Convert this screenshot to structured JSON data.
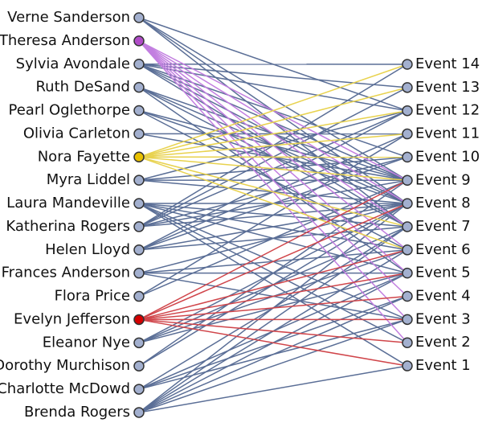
{
  "node_color": "#a3b0cf",
  "edge_color": "#5a6e96",
  "events": [
    "Event 14",
    "Event 13",
    "Event 12",
    "Event 11",
    "Event 10",
    "Event 9",
    "Event 8",
    "Event 7",
    "Event 6",
    "Event 5",
    "Event 4",
    "Event 3",
    "Event 2",
    "Event 1"
  ],
  "women": [
    {
      "name": "Verne Sanderson",
      "events": [
        "Event 7",
        "Event 8",
        "Event 9",
        "Event 12"
      ]
    },
    {
      "name": "Theresa Anderson",
      "color": "#b04cc8",
      "edge_color": "#c27ee0",
      "events": [
        "Event 2",
        "Event 3",
        "Event 4",
        "Event 5",
        "Event 6",
        "Event 7",
        "Event 8",
        "Event 9"
      ]
    },
    {
      "name": "Sylvia Avondale",
      "events": [
        "Event 7",
        "Event 8",
        "Event 9",
        "Event 10",
        "Event 12",
        "Event 13",
        "Event 14"
      ]
    },
    {
      "name": "Ruth DeSand",
      "events": [
        "Event 5",
        "Event 7",
        "Event 8",
        "Event 9"
      ]
    },
    {
      "name": "Pearl Oglethorpe",
      "events": [
        "Event 6",
        "Event 8",
        "Event 9"
      ]
    },
    {
      "name": "Olivia Carleton",
      "events": [
        "Event 9",
        "Event 11"
      ]
    },
    {
      "name": "Nora Fayette",
      "color": "#e8c000",
      "edge_color": "#e8d24e",
      "events": [
        "Event 6",
        "Event 7",
        "Event 9",
        "Event 10",
        "Event 11",
        "Event 12",
        "Event 13",
        "Event 14"
      ]
    },
    {
      "name": "Myra Liddel",
      "events": [
        "Event 8",
        "Event 9",
        "Event 10",
        "Event 12"
      ]
    },
    {
      "name": "Laura Mandeville",
      "events": [
        "Event 1",
        "Event 2",
        "Event 3",
        "Event 5",
        "Event 6",
        "Event 7",
        "Event 8"
      ]
    },
    {
      "name": "Katherina Rogers",
      "events": [
        "Event 8",
        "Event 9",
        "Event 10",
        "Event 12",
        "Event 13",
        "Event 14"
      ]
    },
    {
      "name": "Helen Lloyd",
      "events": [
        "Event 7",
        "Event 8",
        "Event 10",
        "Event 11",
        "Event 12"
      ]
    },
    {
      "name": "Frances Anderson",
      "events": [
        "Event 3",
        "Event 5",
        "Event 6",
        "Event 8"
      ]
    },
    {
      "name": "Flora Price",
      "events": [
        "Event 9",
        "Event 11"
      ]
    },
    {
      "name": "Evelyn Jefferson",
      "color": "#d40000",
      "edge_color": "#d0454a",
      "events": [
        "Event 1",
        "Event 2",
        "Event 3",
        "Event 4",
        "Event 5",
        "Event 6",
        "Event 8",
        "Event 9"
      ]
    },
    {
      "name": "Eleanor Nye",
      "events": [
        "Event 5",
        "Event 6",
        "Event 7",
        "Event 8"
      ]
    },
    {
      "name": "Dorothy Murchison",
      "events": [
        "Event 8",
        "Event 9"
      ]
    },
    {
      "name": "Charlotte McDowd",
      "events": [
        "Event 3",
        "Event 4",
        "Event 5",
        "Event 7"
      ]
    },
    {
      "name": "Brenda Rogers",
      "events": [
        "Event 1",
        "Event 3",
        "Event 4",
        "Event 5",
        "Event 6",
        "Event 7",
        "Event 8"
      ]
    }
  ]
}
